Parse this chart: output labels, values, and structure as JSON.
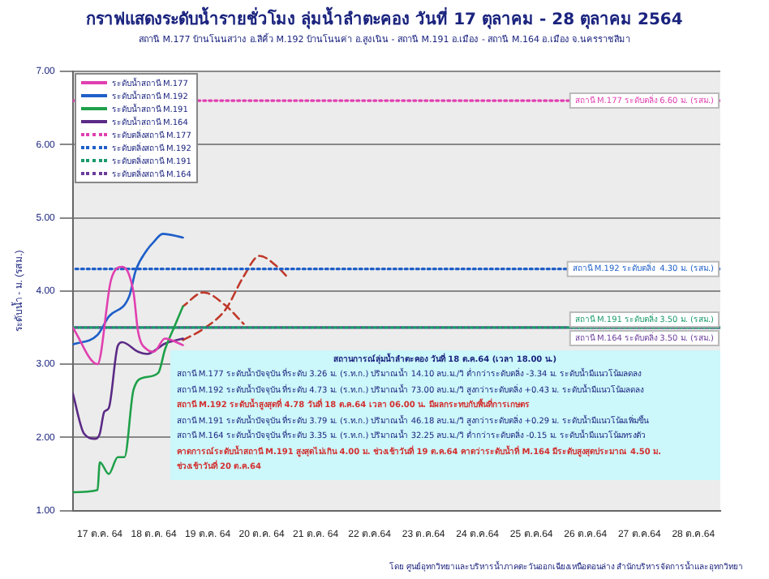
{
  "chart_data": {
    "type": "line",
    "title": "กราฟแสดงระดับน้ำรายชั่วโมง ลุ่มน้ำลำตะคอง วันที่ 17 ตุลาคม - 28 ตุลาคม 2564",
    "subtitle": "สถานี M.177 บ้านโนนสว่าง อ.สีคิ้ว M.192 บ้านโนนค่า อ.สูงเนิน - สถานี M.191 อ.เมือง - สถานี M.164 อ.เมือง จ.นครราชสีมา",
    "ylabel": "ระดับน้ำ - ม. (รสม.)",
    "xlim": [
      "--10-17T00:00",
      "--10-29T00:00"
    ],
    "xticks": [
      {
        "value": "--10-17T12:00",
        "label": "17 ต.ค. 64"
      },
      {
        "value": "--10-18T12:00",
        "label": "18 ต.ค. 64"
      },
      {
        "value": "--10-19T12:00",
        "label": "19 ต.ค. 64"
      },
      {
        "value": "--10-20T12:00",
        "label": "20 ต.ค. 64"
      },
      {
        "value": "--10-21T12:00",
        "label": "21 ต.ค. 64"
      },
      {
        "value": "--10-22T12:00",
        "label": "22 ต.ค.64"
      },
      {
        "value": "--10-23T12:00",
        "label": "23 ต.ค.64"
      },
      {
        "value": "--10-24T12:00",
        "label": "24 ต.ค.64"
      },
      {
        "value": "--10-25T12:00",
        "label": "25 ต.ค.64"
      },
      {
        "value": "--10-26T12:00",
        "label": "26 ต.ค.64"
      },
      {
        "value": "--10-27T12:00",
        "label": "27 ต.ค.64"
      },
      {
        "value": "--10-28T12:00",
        "label": "28 ต.ค.64"
      }
    ],
    "ylim": [
      1,
      7
    ],
    "yticks": [
      {
        "value": 1,
        "label": "1.00"
      },
      {
        "value": 2,
        "label": "2.00"
      },
      {
        "value": 3,
        "label": "3.00"
      },
      {
        "value": 4,
        "label": "4.00"
      },
      {
        "value": 5,
        "label": "5.00"
      },
      {
        "value": 6,
        "label": "6.00"
      },
      {
        "value": 7,
        "label": "7.00"
      }
    ],
    "grid": "y",
    "legend": "top left",
    "marker": "none",
    "series": [
      {
        "name": "ระดับน้ำสถานี M.177",
        "color": "#e040b0",
        "line_style": "solid",
        "x": [
          "--10-17T00:00",
          "--10-17T11:00",
          "--10-17T17:00",
          "--10-17T22:00",
          "--10-18T03:00",
          "--10-18T05:00",
          "--10-18T09:00",
          "--10-18T12:00",
          "--10-18T17:00",
          "--10-19T01:00"
        ],
        "values": [
          3.5,
          3.0,
          4.15,
          4.33,
          3.98,
          3.45,
          3.2,
          3.17,
          3.35,
          3.26
        ]
      },
      {
        "name": "ระดับน้ำสถานี M.192",
        "color": "#1f5fc8",
        "line_style": "solid",
        "x": [
          "--10-17T00:00",
          "--10-17T11:00",
          "--10-17T16:00",
          "--10-18T01:00",
          "--10-18T04:00",
          "--10-18T09:00",
          "--10-18T12:00",
          "--10-18T16:00",
          "--10-19T01:00"
        ],
        "values": [
          3.27,
          3.4,
          3.65,
          3.92,
          4.28,
          4.56,
          4.67,
          4.78,
          4.73
        ]
      },
      {
        "name": "ระดับน้ำสถานี M.191",
        "color": "#1fa04a",
        "line_style": "solid",
        "x": [
          "--10-17T00:00",
          "--10-17T11:00",
          "--10-17T12:00",
          "--10-17T16:00",
          "--10-17T20:00",
          "--10-17T23:00",
          "--10-18T03:00",
          "--10-18T08:00",
          "--10-18T14:00",
          "--10-18T17:00",
          "--10-18T21:00",
          "--10-19T01:00"
        ],
        "values": [
          1.25,
          1.28,
          1.66,
          1.5,
          1.73,
          1.73,
          2.65,
          2.82,
          2.88,
          3.2,
          3.5,
          3.79
        ]
      },
      {
        "name": "ระดับน้ำสถานี M.164",
        "color": "#5b2a86",
        "line_style": "solid",
        "x": [
          "--10-17T00:00",
          "--10-17T05:00",
          "--10-17T10:00",
          "--10-17T12:00",
          "--10-17T14:00",
          "--10-17T16:00",
          "--10-17T20:00",
          "--10-17T22:00",
          "--10-18T05:00",
          "--10-18T09:00",
          "--10-18T17:00",
          "--10-19T01:00"
        ],
        "values": [
          2.6,
          2.05,
          1.98,
          2.05,
          2.35,
          2.4,
          3.25,
          3.3,
          3.17,
          3.14,
          3.28,
          3.35
        ]
      },
      {
        "name": "ระดับตลิ่งสถานี M.177",
        "color": "#e040b0",
        "line_style": "dotted",
        "x": [
          "--10-17T00:00",
          "--10-29T00:00"
        ],
        "values": [
          6.6,
          6.6
        ]
      },
      {
        "name": "ระดับตลิ่งสถานี M.192",
        "color": "#1f5fc8",
        "line_style": "dotted",
        "x": [
          "--10-17T00:00",
          "--10-29T00:00"
        ],
        "values": [
          4.3,
          4.3
        ]
      },
      {
        "name": "ระดับตลิ่งสถานี M.191",
        "color": "#1a9a6a",
        "line_style": "dotted",
        "x": [
          "--10-17T00:00",
          "--10-29T00:00"
        ],
        "values": [
          3.5,
          3.5
        ]
      },
      {
        "name": "ระดับตลิ่งสถานี M.164",
        "color": "#6a3d9a",
        "line_style": "dotted",
        "x": [
          "--10-17T00:00",
          "--10-29T00:00"
        ],
        "values": [
          3.5,
          3.5
        ]
      },
      {
        "color": "#c0392b",
        "line_style": "dashed",
        "x": [
          "--10-19T01:00",
          "--10-19T10:00",
          "--10-19T20:00",
          "--10-20T04:00",
          "--10-20T11:00",
          "--10-20T19:00",
          "--10-21T00:00"
        ],
        "values": [
          3.33,
          3.48,
          3.75,
          4.2,
          4.48,
          4.33,
          4.17
        ]
      },
      {
        "color": "#c0392b",
        "line_style": "dashed",
        "x": [
          "--10-19T01:00",
          "--10-19T10:00",
          "--10-19T20:00",
          "--10-20T04:00"
        ],
        "values": [
          3.79,
          3.98,
          3.8,
          3.55
        ]
      }
    ],
    "annotations": [
      {
        "text": "สถานี M.177 ระดับตลิ่ง 6.60 ม. (รสม.)",
        "y": 6.6
      },
      {
        "text": "สถานี M.192 ระดับตลิ่ง  4.30 ม. (รสม.)",
        "y": 4.3
      },
      {
        "text": "สถานี M.191 ระดับตลิ่ง 3.50 ม. (รสม.)",
        "y": 3.5
      },
      {
        "text": "สถานี M.164 ระดับตลิ่ง 3.50 ม. (รสม.)",
        "y": 3.5
      },
      "สถานการณ์ลุ่มน้ำลำตะคอง  วันที่ 18 ต.ค.64 (เวลา 18.00 น.)",
      "สถานี M.177 ระดับน้ำปัจจุบัน ที่ระดับ 3.26 ม. (ร.ท.ก.) ปริมาณน้ำ 14.10 ลบ.ม./วิ ต่ำกว่าระดับตลิ่ง -3.34 ม. ระดับน้ำมีแนวโน้มลดลง",
      "สถานี M.192 ระดับน้ำปัจจุบัน ที่ระดับ 4.73 ม. (ร.ท.ก.) ปริมาณน้ำ 73.00 ลบ.ม./วิ สูงกว่าระดับตลิ่ง +0.43 ม. ระดับน้ำมีแนวโน้มลดลง",
      "สถานี M.192 ระดับน้ำสูงสุดที่ 4.78 วันที่ 18 ต.ค.64 เวลา 06.00 น. มีผลกระทบกับพื้นที่การเกษตร",
      "สถานี M.191 ระดับน้ำปัจจุบัน ที่ระดับ 3.79 ม. (ร.ท.ก.) ปริมาณน้ำ 46.18 ลบ.ม./วิ สูงกว่าระดับตลิ่ง +0.29 ม. ระดับน้ำมีแนวโน้มเพิ่มขึ้น",
      "สถานี M.164 ระดับน้ำปัจจุบัน ที่ระดับ 3.35 ม. (ร.ท.ก.) ปริมาณน้ำ 32.25 ลบ.ม./วิ ต่ำกว่าระดับตลิ่ง -0.15 ม. ระดับน้ำมีแนวโน้มทรงตัว",
      "คาดการณ์ระดับน้ำสถานี M.191 สูงสุดไม่เกิน 4.00 ม. ช่วงเช้าวันที่ 19 ต.ค.64 คาดว่าระดับน้ำที่ M.164 มีระดับสูงสุดประมาณ 4.50 ม.",
      "ช่วงเช้าวันที่ 20 ต.ค.64",
      "โดย ศูนย์อุทกวิทยาและบริหารน้ำภาคตะวันออกเฉียงเหนือตอนล่าง สำนักบริหารจัดการน้ำและอุทกวิทยา"
    ]
  }
}
